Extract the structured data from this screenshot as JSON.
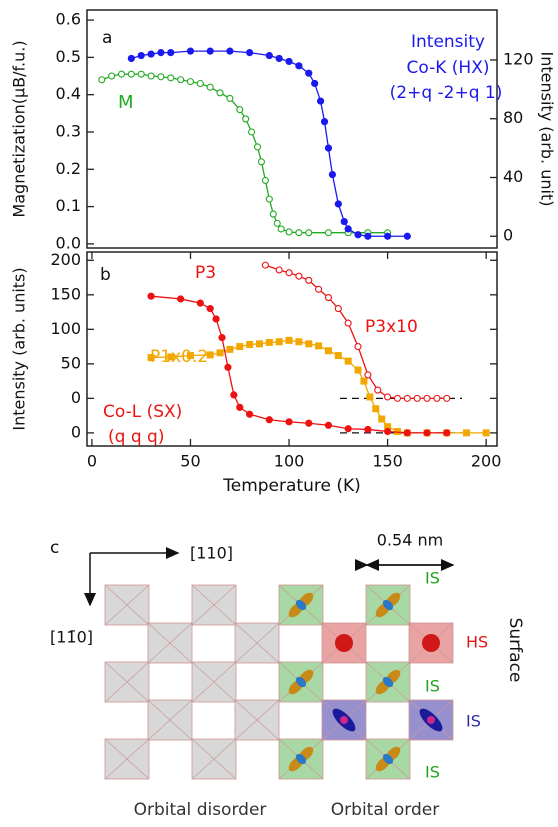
{
  "chart_data": [
    {
      "type": "line",
      "ylabel": "Magnetization(μB/f.u.)",
      "y2label": "Intensity (arb. unit)",
      "xlim": [
        -2.5,
        205.5
      ],
      "ylim": [
        -0.011,
        0.627
      ],
      "yticks": [
        {
          "value": 0,
          "label": "0.0"
        },
        0.1,
        0.2,
        0.3,
        0.4,
        0.5,
        0.6
      ],
      "y2lim": [
        -8,
        154
      ],
      "y2ticks": [
        0,
        40,
        80,
        120
      ],
      "annotations": [
        {
          "text": "a",
          "color": "#111111"
        },
        {
          "text": "M",
          "color": "#22aa22"
        },
        {
          "text": "Intensity",
          "color": "#1a1aee"
        },
        {
          "text": "Co-K (HX)",
          "color": "#1a1aee"
        },
        {
          "text": "(2+q -2+q 1)",
          "color": "#1a1aee"
        }
      ],
      "series": [
        {
          "color": "#22aa22",
          "marker": "open-circle",
          "x": [
            5,
            10,
            15,
            20,
            25,
            30,
            35,
            40,
            45,
            50,
            55,
            60,
            65,
            70,
            75,
            78,
            81,
            84,
            86,
            88,
            90,
            92,
            94,
            96,
            100,
            105,
            110,
            120,
            130,
            140,
            150
          ],
          "values": [
            0.44,
            0.45,
            0.455,
            0.455,
            0.455,
            0.45,
            0.448,
            0.445,
            0.44,
            0.435,
            0.43,
            0.42,
            0.405,
            0.39,
            0.36,
            0.335,
            0.3,
            0.26,
            0.22,
            0.17,
            0.12,
            0.08,
            0.055,
            0.04,
            0.032,
            0.03,
            0.03,
            0.03,
            0.03,
            0.03,
            0.03
          ]
        },
        {
          "color": "#1a1aee",
          "marker": "circle",
          "axis": "y2",
          "x": [
            20,
            25,
            30,
            35,
            40,
            50,
            60,
            70,
            80,
            90,
            95,
            100,
            105,
            110,
            113,
            116,
            118,
            120,
            122,
            125,
            128,
            130,
            135,
            140,
            150,
            160
          ],
          "values": [
            121,
            123,
            124,
            125,
            125,
            126,
            126,
            126,
            125,
            123,
            121,
            119,
            116,
            111,
            104,
            92,
            78,
            60,
            42,
            22,
            10,
            5,
            1,
            0,
            0,
            0
          ]
        }
      ]
    },
    {
      "type": "line",
      "ylabel": "Intensity (arb. units)",
      "xlabel": "Temperature (K)",
      "xlim": [
        -2.5,
        205.5
      ],
      "xticks": [
        0,
        50,
        100,
        150,
        200
      ],
      "ylim": [
        -19,
        262
      ],
      "yticks": [
        0,
        {
          "value": 50,
          "label": "0"
        },
        {
          "value": 100,
          "label": "50"
        },
        {
          "value": 150,
          "label": "100"
        },
        {
          "value": 200,
          "label": "150"
        },
        {
          "value": 250,
          "label": "200"
        }
      ],
      "annotations": [
        {
          "text": "b",
          "color": "#111111"
        },
        {
          "text": "P3",
          "color": "#ee1111"
        },
        {
          "text": "P3x10",
          "color": "#ee1111"
        },
        {
          "text": "P1x0.2",
          "color": "#f2a600"
        },
        {
          "text": "Co-L (SX)",
          "color": "#ee1111"
        },
        {
          "text": "(q q q)",
          "color": "#ee1111"
        }
      ],
      "series": [
        {
          "color": "#f2a600",
          "marker": "square",
          "x": [
            30,
            40,
            50,
            60,
            65,
            70,
            75,
            80,
            85,
            90,
            95,
            100,
            105,
            110,
            115,
            120,
            125,
            130,
            135,
            138,
            141,
            144,
            147,
            150,
            155,
            160,
            170,
            180,
            190,
            200
          ],
          "values": [
            109,
            110,
            112,
            113,
            116,
            121,
            125,
            128,
            129,
            131,
            132,
            134,
            132,
            129,
            126,
            119,
            112,
            104,
            91,
            75,
            52,
            35,
            20,
            9,
            2,
            0,
            0,
            0,
            0,
            0
          ]
        },
        {
          "color": "#ee1111",
          "marker": "circle",
          "x": [
            30,
            45,
            55,
            60,
            63,
            66,
            69,
            72,
            75,
            80,
            90,
            100,
            110,
            120,
            130,
            140,
            150,
            160,
            170,
            180
          ],
          "values": [
            198,
            194,
            188,
            180,
            165,
            138,
            95,
            55,
            37,
            27,
            19,
            16,
            14,
            11,
            6,
            5,
            2,
            0,
            0,
            0
          ]
        },
        {
          "color": "#ee1111",
          "marker": "open-circle",
          "x": [
            88,
            95,
            100,
            105,
            110,
            115,
            120,
            125,
            130,
            135,
            140,
            145,
            150,
            155,
            160,
            165,
            170,
            175,
            180
          ],
          "values": [
            243,
            236,
            232,
            227,
            221,
            208,
            196,
            180,
            159,
            125,
            84,
            62,
            52,
            50,
            50,
            50,
            50,
            50,
            50
          ]
        }
      ]
    }
  ],
  "diagram": {
    "panel_label": "c",
    "axis_h": "[110]",
    "axis_v": "[11̄0]",
    "scale": "0.54 nm",
    "site_labels": [
      "IS",
      "HS",
      "IS",
      "IS",
      "IS"
    ],
    "surface": "Surface",
    "captions": [
      "Orbital disorder",
      "Orbital order"
    ]
  }
}
